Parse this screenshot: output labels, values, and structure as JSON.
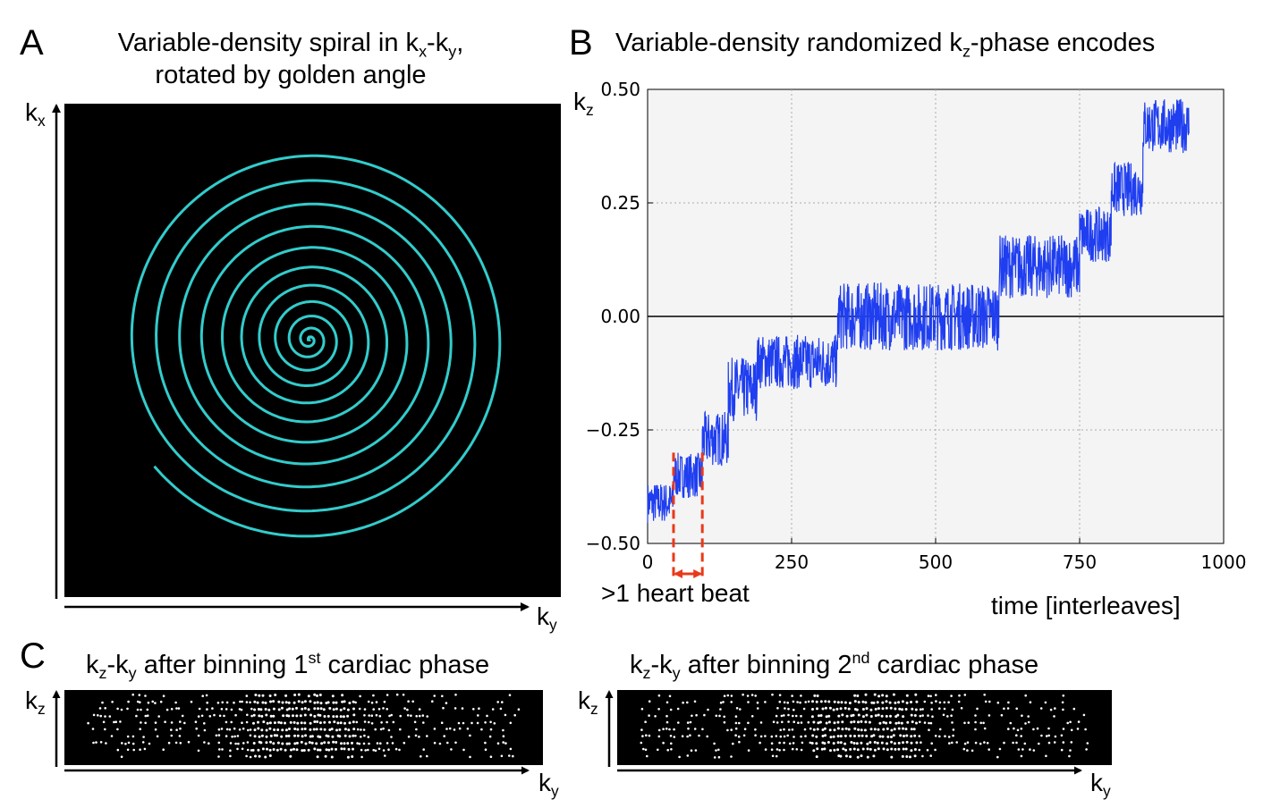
{
  "panels": {
    "A": {
      "letter": "A",
      "title_line1_pre": "Variable-density spiral in k",
      "title_sub1": "x",
      "title_mid": "-k",
      "title_sub2": "y",
      "title_line1_post": ",",
      "title_line2": "rotated by golden angle",
      "axis_v_base": "k",
      "axis_v_sub": "x",
      "axis_h_base": "k",
      "axis_h_sub": "y",
      "spiral_color": "#33cccc",
      "background_color": "#000000"
    },
    "B": {
      "letter": "B",
      "title_pre": "Variable-density randomized k",
      "title_sub": "z",
      "title_post": "-phase encodes",
      "ylabel_base": "k",
      "ylabel_sub": "z",
      "xlabel": "time [interleaves]",
      "annotation": ">1 heart beat",
      "annotation_color": "#e83a1a"
    },
    "C": {
      "letter": "C",
      "left_title_pre": "k",
      "left_title_sub1": "z",
      "left_title_mid": "-k",
      "left_title_sub2": "y",
      "left_title_text": " after binning 1",
      "left_title_sup": "st",
      "left_title_post": " cardiac phase",
      "right_title_pre": "k",
      "right_title_sub1": "z",
      "right_title_mid": "-k",
      "right_title_sub2": "y",
      "right_title_text": " after binning 2",
      "right_title_sup": "nd",
      "right_title_post": " cardiac phase",
      "axis_v_base": "k",
      "axis_v_sub": "z",
      "axis_h_base": "k",
      "axis_h_sub": "y"
    }
  },
  "chart_data": {
    "type": "line",
    "title": "Variable-density randomized kz-phase encodes",
    "xlabel": "time [interleaves]",
    "ylabel": "kz",
    "xlim": [
      0,
      1000
    ],
    "ylim": [
      -0.5,
      0.5
    ],
    "xticks": [
      "0",
      "250",
      "500",
      "750",
      "1000"
    ],
    "yticks": [
      "−0.50",
      "−0.25",
      "0.00",
      "0.25",
      "0.50"
    ],
    "grid": true,
    "line_color": "#1f3ef0",
    "steps": [
      {
        "x0": 0,
        "x1": 45,
        "center": -0.41,
        "spread": 0.045
      },
      {
        "x0": 45,
        "x1": 95,
        "center": -0.35,
        "spread": 0.05
      },
      {
        "x0": 95,
        "x1": 140,
        "center": -0.27,
        "spread": 0.06
      },
      {
        "x0": 140,
        "x1": 190,
        "center": -0.16,
        "spread": 0.07
      },
      {
        "x0": 190,
        "x1": 330,
        "center": -0.1,
        "spread": 0.06
      },
      {
        "x0": 330,
        "x1": 610,
        "center": 0.0,
        "spread": 0.075
      },
      {
        "x0": 610,
        "x1": 750,
        "center": 0.11,
        "spread": 0.07
      },
      {
        "x0": 750,
        "x1": 805,
        "center": 0.18,
        "spread": 0.06
      },
      {
        "x0": 805,
        "x1": 860,
        "center": 0.28,
        "spread": 0.06
      },
      {
        "x0": 860,
        "x1": 940,
        "center": 0.42,
        "spread": 0.06
      }
    ],
    "annotation": {
      "text": ">1 heart beat",
      "x_start": 45,
      "x_end": 95
    }
  }
}
